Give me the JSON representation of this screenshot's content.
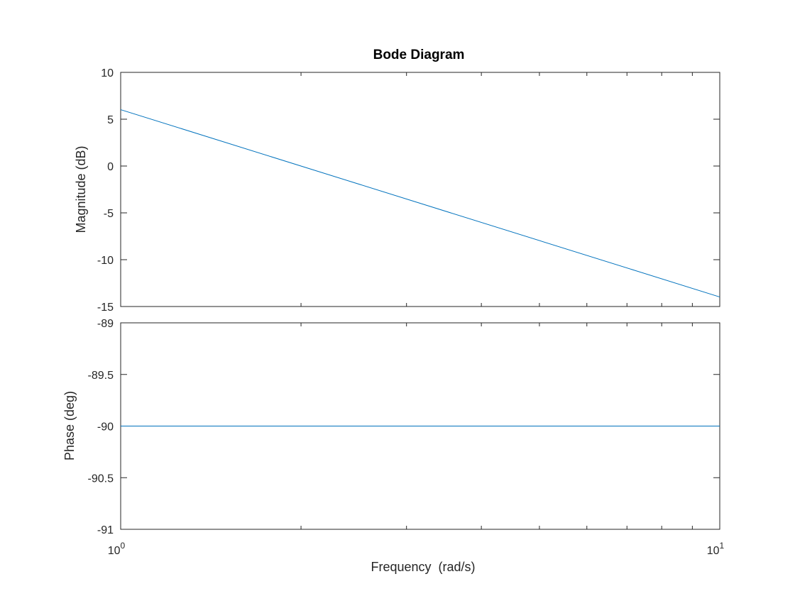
{
  "chart_data": [
    {
      "type": "line",
      "panel": "magnitude",
      "title": "Bode Diagram",
      "ylabel": "Magnitude (dB)",
      "xscale": "log",
      "xlim": [
        1,
        10
      ],
      "ylim": [
        -15,
        10
      ],
      "yticks": [
        10,
        5,
        0,
        -5,
        -10,
        -15
      ],
      "ytick_labels": [
        "10",
        "5",
        "0",
        "-5",
        "-10",
        "-15"
      ],
      "grid": false,
      "series": [
        {
          "x": [
            1,
            10
          ],
          "y": [
            6.02,
            -13.98
          ],
          "color": "#0072BD"
        }
      ]
    },
    {
      "type": "line",
      "panel": "phase",
      "ylabel": "Phase (deg)",
      "xlabel": "Frequency  (rad/s)",
      "xscale": "log",
      "xlim": [
        1,
        10
      ],
      "ylim": [
        -91,
        -89
      ],
      "yticks": [
        -89,
        -89.5,
        -90,
        -90.5,
        -91
      ],
      "ytick_labels": [
        "-89",
        "-89.5",
        "-90",
        "-90.5",
        "-91"
      ],
      "xtick_labels": [
        {
          "base": "10",
          "exp": "0"
        },
        {
          "base": "10",
          "exp": "1"
        }
      ],
      "grid": false,
      "series": [
        {
          "x": [
            1,
            10
          ],
          "y": [
            -90,
            -90
          ],
          "color": "#0072BD"
        }
      ]
    }
  ]
}
